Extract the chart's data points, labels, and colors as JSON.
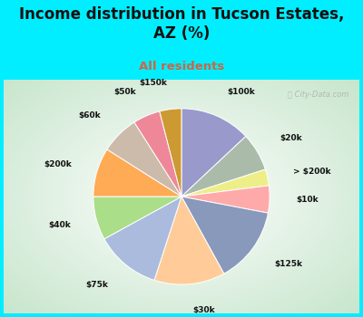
{
  "title": "Income distribution in Tucson Estates,\nAZ (%)",
  "subtitle": "All residents",
  "title_fontsize": 12,
  "subtitle_fontsize": 9.5,
  "title_color": "#111111",
  "subtitle_color": "#cc6644",
  "fig_bg": "#00eeff",
  "chart_bg_outer": "#b8d8c0",
  "chart_bg_inner": "#f5faf5",
  "watermark": "ⓘ City-Data.com",
  "labels": [
    "$100k",
    "$20k",
    "> $200k",
    "$10k",
    "$125k",
    "$30k",
    "$75k",
    "$40k",
    "$200k",
    "$60k",
    "$50k",
    "$150k"
  ],
  "sizes": [
    13,
    7,
    3,
    5,
    14,
    13,
    12,
    8,
    9,
    7,
    5,
    4
  ],
  "colors": [
    "#9999cc",
    "#aabbaa",
    "#eeee88",
    "#ffaaaa",
    "#8899bb",
    "#ffcc99",
    "#aabbdd",
    "#aade88",
    "#ffaa55",
    "#ccbbaa",
    "#ee8899",
    "#cc9933"
  ],
  "figsize": [
    4.0,
    3.5
  ],
  "dpi": 100,
  "startangle": 90,
  "label_fontsize": 6.5,
  "labeldistance": 1.3
}
